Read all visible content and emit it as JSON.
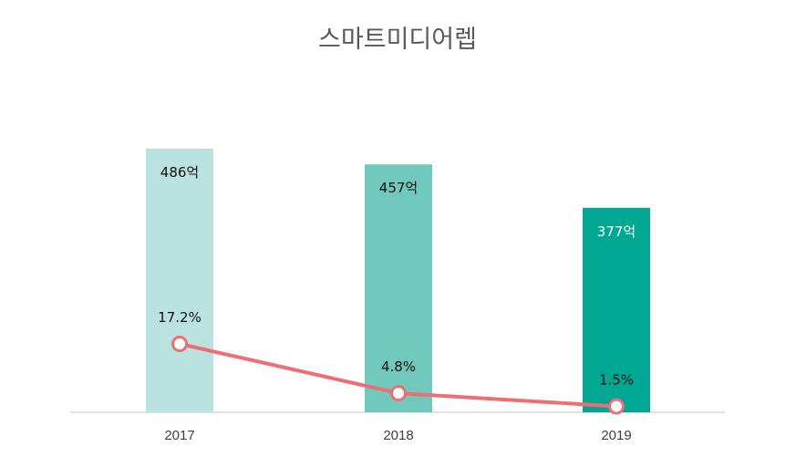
{
  "chart_data": {
    "type": "bar",
    "title": "스마트미디어렙",
    "categories": [
      "2017",
      "2018",
      "2019"
    ],
    "series": [
      {
        "type": "bar",
        "values": [
          486,
          457,
          377
        ],
        "value_labels": [
          "486억",
          "457억",
          "377억"
        ],
        "colors": [
          "#bae3df",
          "#71c8bc",
          "#00a894"
        ],
        "label_colors": [
          "#111111",
          "#111111",
          "#ffffff"
        ]
      },
      {
        "type": "line",
        "values": [
          17.2,
          4.8,
          1.5
        ],
        "value_labels": [
          "17.2%",
          "4.8%",
          "1.5%"
        ],
        "color": "#ee6e73"
      }
    ],
    "xlabel": "",
    "ylabel": "",
    "grid": false,
    "legend": "none"
  }
}
